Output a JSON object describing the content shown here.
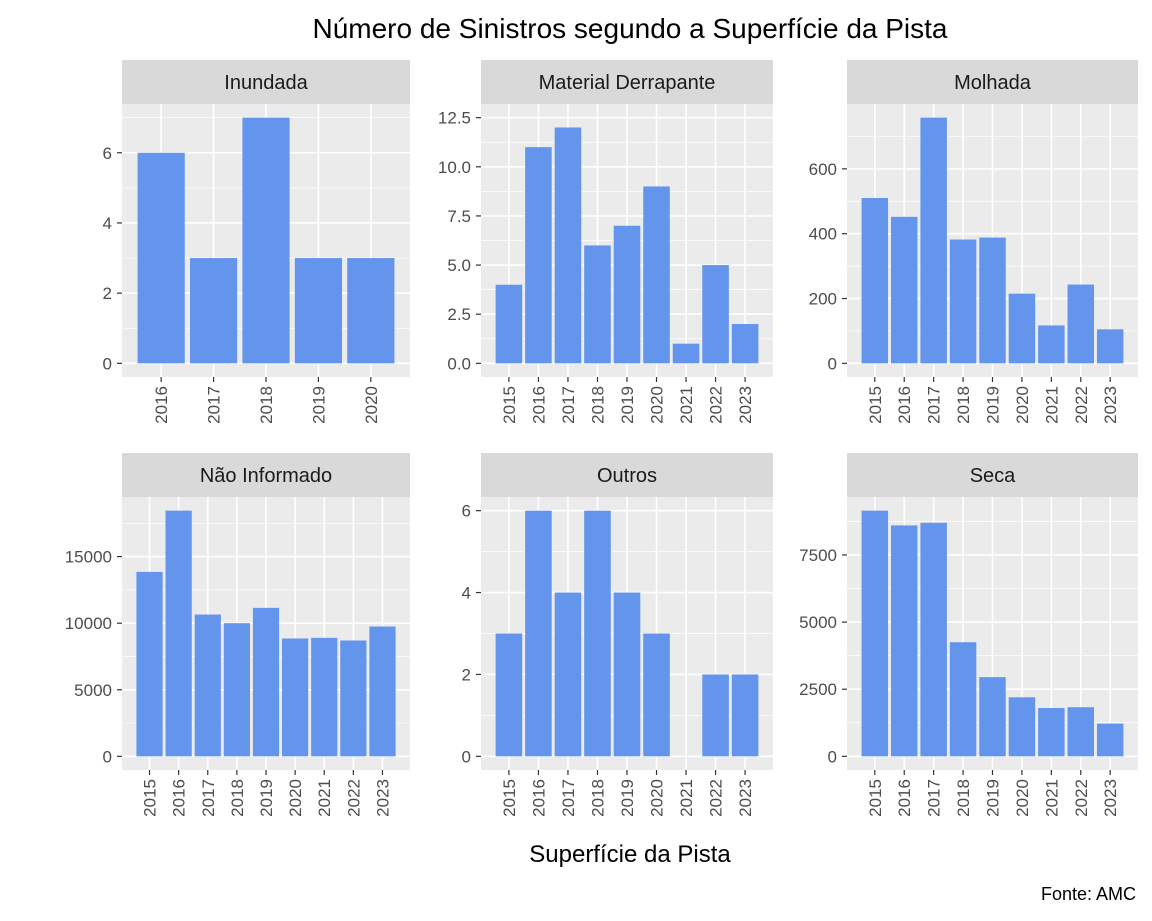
{
  "title": "Número de Sinistros segundo a Superfície da Pista",
  "xlabel": "Superfície da Pista",
  "caption": "Fonte: AMC",
  "colors": {
    "bar": "#6495ED",
    "panel_bg": "#EBEBEB",
    "strip_bg": "#D9D9D9",
    "grid": "#FFFFFF",
    "tick_text": "#4D4D4D"
  },
  "chart_data": [
    {
      "type": "bar",
      "facet": "Inundada",
      "categories": [
        "2016",
        "2017",
        "2018",
        "2019",
        "2020"
      ],
      "values": [
        6,
        3,
        7,
        3,
        3
      ],
      "yticks": [
        0,
        2,
        4,
        6
      ],
      "ytick_labels": [
        "0",
        "2",
        "4",
        "6"
      ],
      "ylim": [
        0,
        7
      ],
      "grid": true
    },
    {
      "type": "bar",
      "facet": "Material Derrapante",
      "categories": [
        "2015",
        "2016",
        "2017",
        "2018",
        "2019",
        "2020",
        "2021",
        "2022",
        "2023"
      ],
      "values": [
        4,
        11,
        12,
        6,
        7,
        9,
        1,
        5,
        2
      ],
      "yticks": [
        0,
        2.5,
        5,
        7.5,
        10,
        12.5
      ],
      "ytick_labels": [
        "0.0",
        "2.5",
        "5.0",
        "7.5",
        "10.0",
        "12.5"
      ],
      "ylim": [
        0,
        12.5
      ],
      "grid": true
    },
    {
      "type": "bar",
      "facet": "Molhada",
      "categories": [
        "2015",
        "2016",
        "2017",
        "2018",
        "2019",
        "2020",
        "2021",
        "2022",
        "2023"
      ],
      "values": [
        510,
        452,
        758,
        382,
        388,
        215,
        117,
        243,
        105
      ],
      "yticks": [
        0,
        200,
        400,
        600
      ],
      "ytick_labels": [
        "0",
        "200",
        "400",
        "600"
      ],
      "ylim": [
        0,
        758
      ],
      "grid": true
    },
    {
      "type": "bar",
      "facet": "Não Informado",
      "categories": [
        "2015",
        "2016",
        "2017",
        "2018",
        "2019",
        "2020",
        "2021",
        "2022",
        "2023"
      ],
      "values": [
        13850,
        18450,
        10650,
        10000,
        11150,
        8850,
        8900,
        8700,
        9750
      ],
      "yticks": [
        0,
        5000,
        10000,
        15000
      ],
      "ytick_labels": [
        "0",
        "5000",
        "10000",
        "15000"
      ],
      "ylim": [
        0,
        18450
      ],
      "grid": true
    },
    {
      "type": "bar",
      "facet": "Outros",
      "categories": [
        "2015",
        "2016",
        "2017",
        "2018",
        "2019",
        "2020",
        "2021",
        "2022",
        "2023"
      ],
      "values": [
        3,
        6,
        4,
        6,
        4,
        3,
        null,
        2,
        2
      ],
      "yticks": [
        0,
        2,
        4,
        6
      ],
      "ytick_labels": [
        "0",
        "2",
        "4",
        "6"
      ],
      "ylim": [
        0,
        6
      ],
      "grid": true
    },
    {
      "type": "bar",
      "facet": "Seca",
      "categories": [
        "2015",
        "2016",
        "2017",
        "2018",
        "2019",
        "2020",
        "2021",
        "2022",
        "2023"
      ],
      "values": [
        9150,
        8600,
        8700,
        4250,
        2950,
        2200,
        1800,
        1830,
        1220
      ],
      "yticks": [
        0,
        2500,
        5000,
        7500
      ],
      "ytick_labels": [
        "0",
        "2500",
        "5000",
        "7500"
      ],
      "ylim": [
        0,
        9150
      ],
      "grid": true
    }
  ]
}
